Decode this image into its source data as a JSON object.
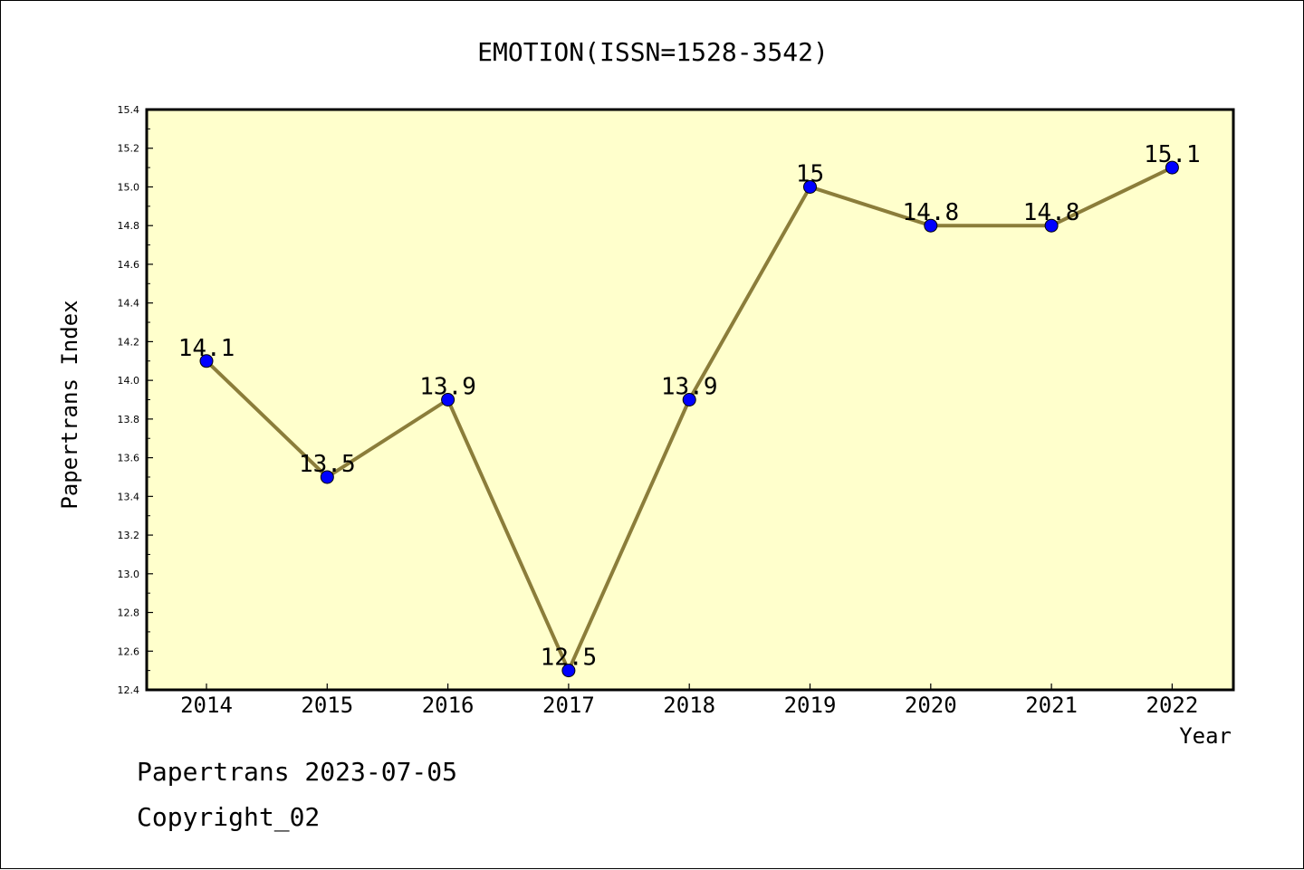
{
  "chart_data": {
    "type": "line",
    "title": "EMOTION(ISSN=1528-3542)",
    "xlabel": "Year",
    "ylabel": "Papertrans Index",
    "categories": [
      "2014",
      "2015",
      "2016",
      "2017",
      "2018",
      "2019",
      "2020",
      "2021",
      "2022"
    ],
    "series": [
      {
        "values": [
          14.1,
          13.5,
          13.9,
          12.5,
          13.9,
          15.0,
          14.8,
          14.8,
          15.1
        ],
        "data_labels": [
          "14.1",
          "13.5",
          "13.9",
          "12.5",
          "13.9",
          "15",
          "14.8",
          "14.8",
          "15.1"
        ]
      }
    ],
    "ylim": [
      12.4,
      15.4
    ],
    "yticks": [
      "12.4",
      "12.6",
      "12.8",
      "13.0",
      "13.2",
      "13.4",
      "13.6",
      "13.8",
      "14.0",
      "14.2",
      "14.4",
      "14.6",
      "14.8",
      "15.0",
      "15.2",
      "15.4"
    ],
    "grid": false,
    "colors": {
      "plot_background": "#ffffcc",
      "line": "#8b7d3a",
      "marker": "#0000ff"
    }
  },
  "footer": {
    "line1": "Papertrans 2023-07-05",
    "line2": "Copyright_02"
  }
}
